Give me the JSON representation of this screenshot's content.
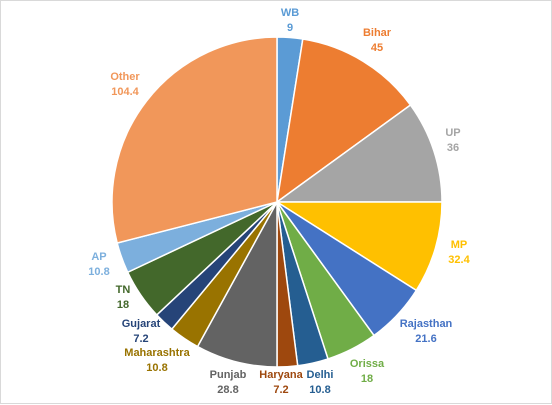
{
  "chart_data": {
    "type": "pie",
    "title": "",
    "start_angle_deg": 0,
    "direction": "clockwise",
    "legend": "none",
    "slices": [
      {
        "label": "WB",
        "value": 9,
        "color": "#5B9BD5",
        "label_color": "#5B9BD5"
      },
      {
        "label": "Bihar",
        "value": 45,
        "color": "#ED7D31",
        "label_color": "#ED7D31"
      },
      {
        "label": "UP",
        "value": 36,
        "color": "#A5A5A5",
        "label_color": "#A5A5A5"
      },
      {
        "label": "MP",
        "value": 32.4,
        "color": "#FFC000",
        "label_color": "#FFC000"
      },
      {
        "label": "Rajasthan",
        "value": 21.6,
        "color": "#4472C4",
        "label_color": "#4472C4"
      },
      {
        "label": "Orissa",
        "value": 18,
        "color": "#70AD47",
        "label_color": "#70AD47"
      },
      {
        "label": "Delhi",
        "value": 10.8,
        "color": "#255E91",
        "label_color": "#255E91"
      },
      {
        "label": "Haryana",
        "value": 7.2,
        "color": "#9E480E",
        "label_color": "#9E480E"
      },
      {
        "label": "Punjab",
        "value": 28.8,
        "color": "#636363",
        "label_color": "#636363"
      },
      {
        "label": "Maharashtra",
        "value": 10.8,
        "color": "#997300",
        "label_color": "#997300"
      },
      {
        "label": "Gujarat",
        "value": 7.2,
        "color": "#264478",
        "label_color": "#264478"
      },
      {
        "label": "TN",
        "value": 18,
        "color": "#43682B",
        "label_color": "#43682B"
      },
      {
        "label": "AP",
        "value": 10.8,
        "color": "#7CAFDD",
        "label_color": "#7CAFDD"
      },
      {
        "label": "Other",
        "value": 104.4,
        "color": "#F1975A",
        "label_color": "#F1975A"
      }
    ]
  }
}
